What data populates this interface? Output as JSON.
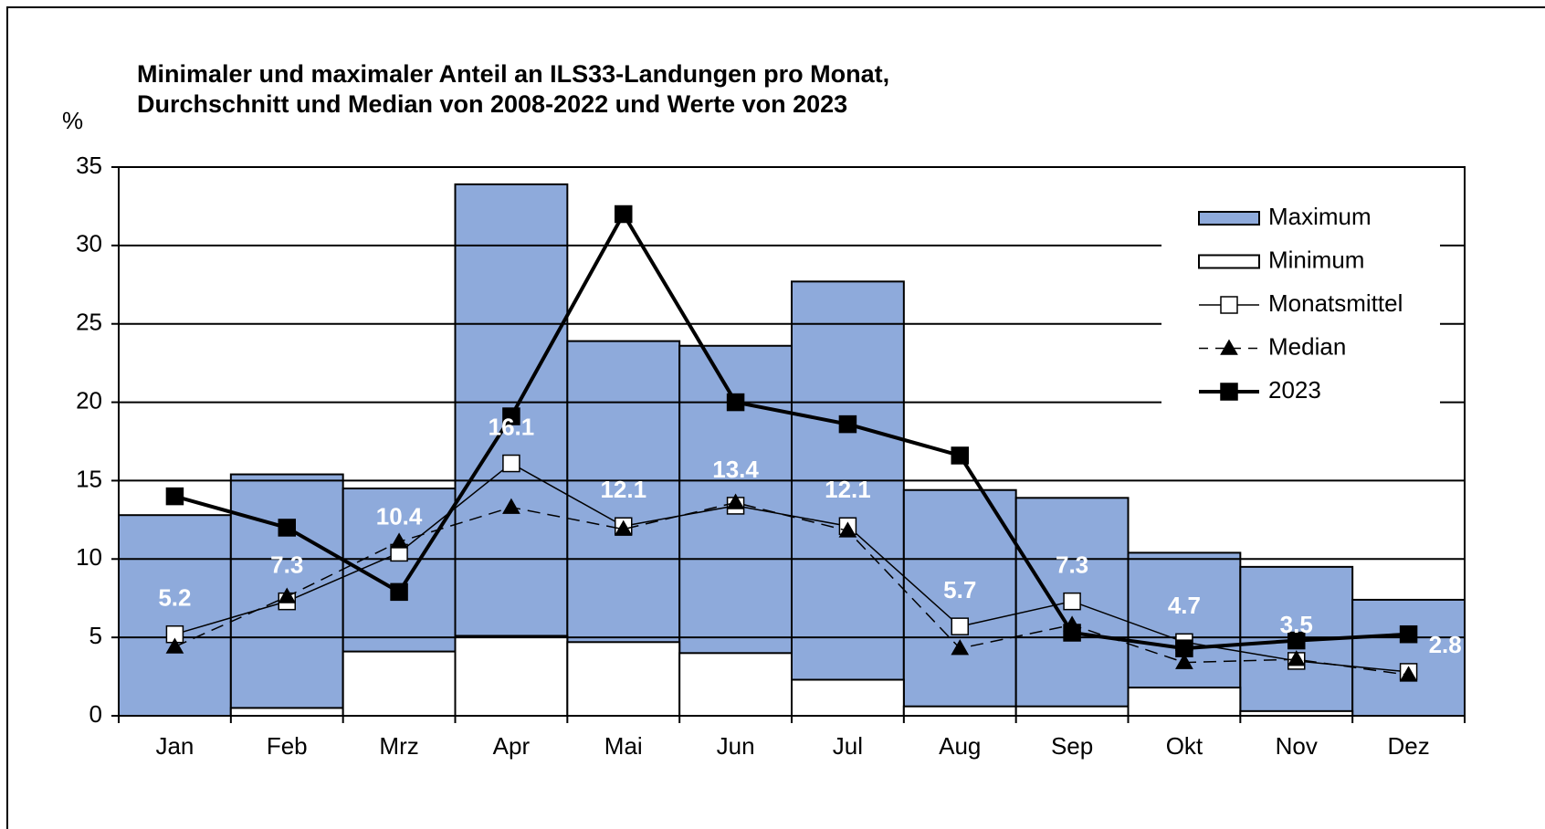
{
  "chart_data": {
    "type": "combo",
    "title": [
      "Minimaler und maximaler Anteil an ILS33-Landungen pro Monat,",
      "Durchschnitt und Median von 2008-2022 und Werte von 2023"
    ],
    "ylabel": "%",
    "categories": [
      "Jan",
      "Feb",
      "Mrz",
      "Apr",
      "Mai",
      "Jun",
      "Jul",
      "Aug",
      "Sep",
      "Okt",
      "Nov",
      "Dez"
    ],
    "ylim": [
      0,
      35
    ],
    "yticks": [
      0,
      5,
      10,
      15,
      20,
      25,
      30,
      35
    ],
    "grid": true,
    "legend": "upper right",
    "series": [
      {
        "name": "Maximum",
        "type": "bar",
        "color": "#8eaadb",
        "values": [
          12.8,
          15.4,
          14.5,
          33.9,
          23.9,
          23.6,
          27.7,
          14.4,
          13.9,
          10.4,
          9.5,
          7.4
        ]
      },
      {
        "name": "Minimum",
        "type": "bar",
        "color": "#ffffff",
        "values": [
          0,
          0.5,
          4.1,
          5.1,
          4.7,
          4.0,
          2.3,
          0.6,
          0.6,
          1.8,
          0.3,
          0
        ]
      },
      {
        "name": "Monatsmittel",
        "type": "line",
        "color": "#000000",
        "marker": "square",
        "marker_fill": "#ffffff",
        "dashed": false,
        "width": 1.5,
        "show_labels": true,
        "values": [
          5.2,
          7.3,
          10.4,
          16.1,
          12.1,
          13.4,
          12.1,
          5.7,
          7.3,
          4.7,
          3.5,
          2.8
        ]
      },
      {
        "name": "Median",
        "type": "line",
        "color": "#000000",
        "marker": "triangle",
        "marker_fill": "#000000",
        "dashed": true,
        "width": 1.5,
        "values": [
          4.4,
          7.6,
          11.1,
          13.3,
          11.9,
          13.6,
          11.8,
          4.3,
          5.8,
          3.4,
          3.6,
          2.6
        ]
      },
      {
        "name": "2023",
        "type": "line",
        "color": "#000000",
        "marker": "square",
        "marker_fill": "#000000",
        "dashed": false,
        "width": 4,
        "values": [
          14.0,
          12.0,
          7.9,
          19.1,
          32.0,
          20.0,
          18.6,
          16.6,
          5.3,
          4.3,
          4.8,
          5.2
        ]
      }
    ]
  }
}
